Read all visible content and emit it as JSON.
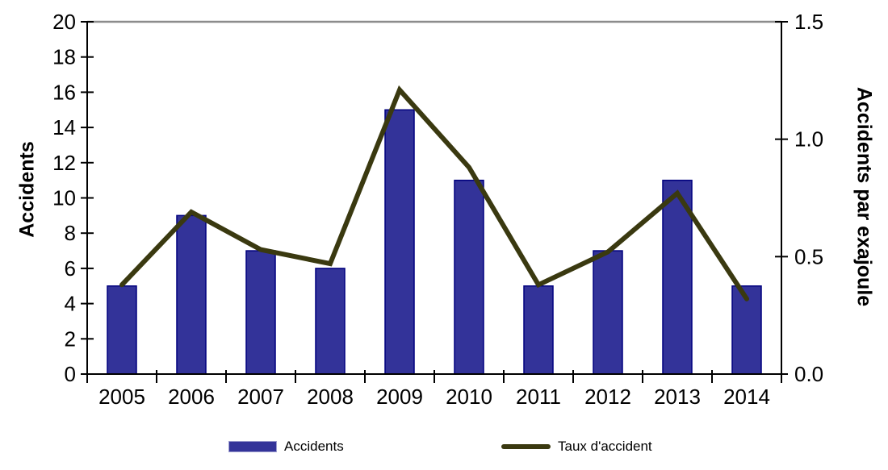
{
  "chart_data": {
    "type": "bar+line",
    "categories": [
      "2005",
      "2006",
      "2007",
      "2008",
      "2009",
      "2010",
      "2011",
      "2012",
      "2013",
      "2014"
    ],
    "series": [
      {
        "name": "Accidents",
        "type": "bar",
        "axis": "left",
        "values": [
          5,
          9,
          7,
          6,
          15,
          11,
          5,
          7,
          11,
          5
        ],
        "color": "#333399",
        "border_color": "#00007E",
        "legend_swatch_border": "#9C9CCE"
      },
      {
        "name": "Taux d'accident",
        "type": "line",
        "axis": "right",
        "values": [
          0.38,
          0.69,
          0.53,
          0.47,
          1.21,
          0.88,
          0.38,
          0.52,
          0.77,
          0.32
        ],
        "color": "#3A3910"
      }
    ],
    "left_axis": {
      "label": "Accidents",
      "min": 0,
      "max": 20,
      "tick_labels": [
        "0",
        "2",
        "4",
        "6",
        "8",
        "10",
        "12",
        "14",
        "16",
        "18",
        "20"
      ]
    },
    "right_axis": {
      "label": "Accidents par exajoule",
      "min": 0,
      "max": 1.5,
      "tick_labels": [
        "0.0",
        "0.5",
        "1.0",
        "1.5"
      ]
    },
    "x_axis": {
      "tick_labels": [
        "2005",
        "2006",
        "2007",
        "2008",
        "2009",
        "2010",
        "2011",
        "2012",
        "2013",
        "2014"
      ]
    },
    "legend": {
      "position": "bottom",
      "items": [
        "Accidents",
        "Taux d'accident"
      ]
    },
    "grid": false,
    "axis_color": "#000000",
    "frame_top_color": "#8C8C8C"
  }
}
